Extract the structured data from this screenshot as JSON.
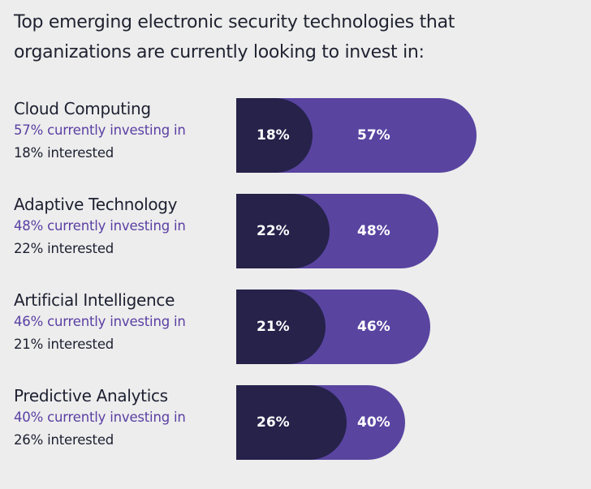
{
  "title_lines": [
    "Top emerging electronic security technologies that",
    "organizations are currently looking to invest in:"
  ],
  "colors": {
    "background": "#ededed",
    "investing": "#5944a0",
    "interested": "#26224a",
    "investing_text": "#5a3fa3"
  },
  "chart_data": {
    "type": "bar",
    "orientation": "horizontal",
    "title": "Top emerging electronic security technologies that organizations are currently looking to invest in:",
    "categories": [
      "Cloud Computing",
      "Adaptive Technology",
      "Artificial Intelligence",
      "Predictive Analytics"
    ],
    "series": [
      {
        "name": "currently investing in",
        "values": [
          57,
          48,
          46,
          40
        ],
        "labels": [
          "57%",
          "48%",
          "46%",
          "40%"
        ]
      },
      {
        "name": "interested",
        "values": [
          18,
          22,
          21,
          26
        ],
        "labels": [
          "18%",
          "22%",
          "21%",
          "26%"
        ]
      }
    ],
    "rows": [
      {
        "name": "Cloud Computing",
        "investing_text": "57% currently investing in",
        "interested_text": "18% interested"
      },
      {
        "name": "Adaptive Technology",
        "investing_text": "48% currently investing in",
        "interested_text": "22% interested"
      },
      {
        "name": "Artificial Intelligence",
        "investing_text": "46% currently investing in",
        "interested_text": "21% interested"
      },
      {
        "name": "Predictive Analytics",
        "investing_text": "40% currently investing in",
        "interested_text": "26% interested"
      }
    ]
  }
}
